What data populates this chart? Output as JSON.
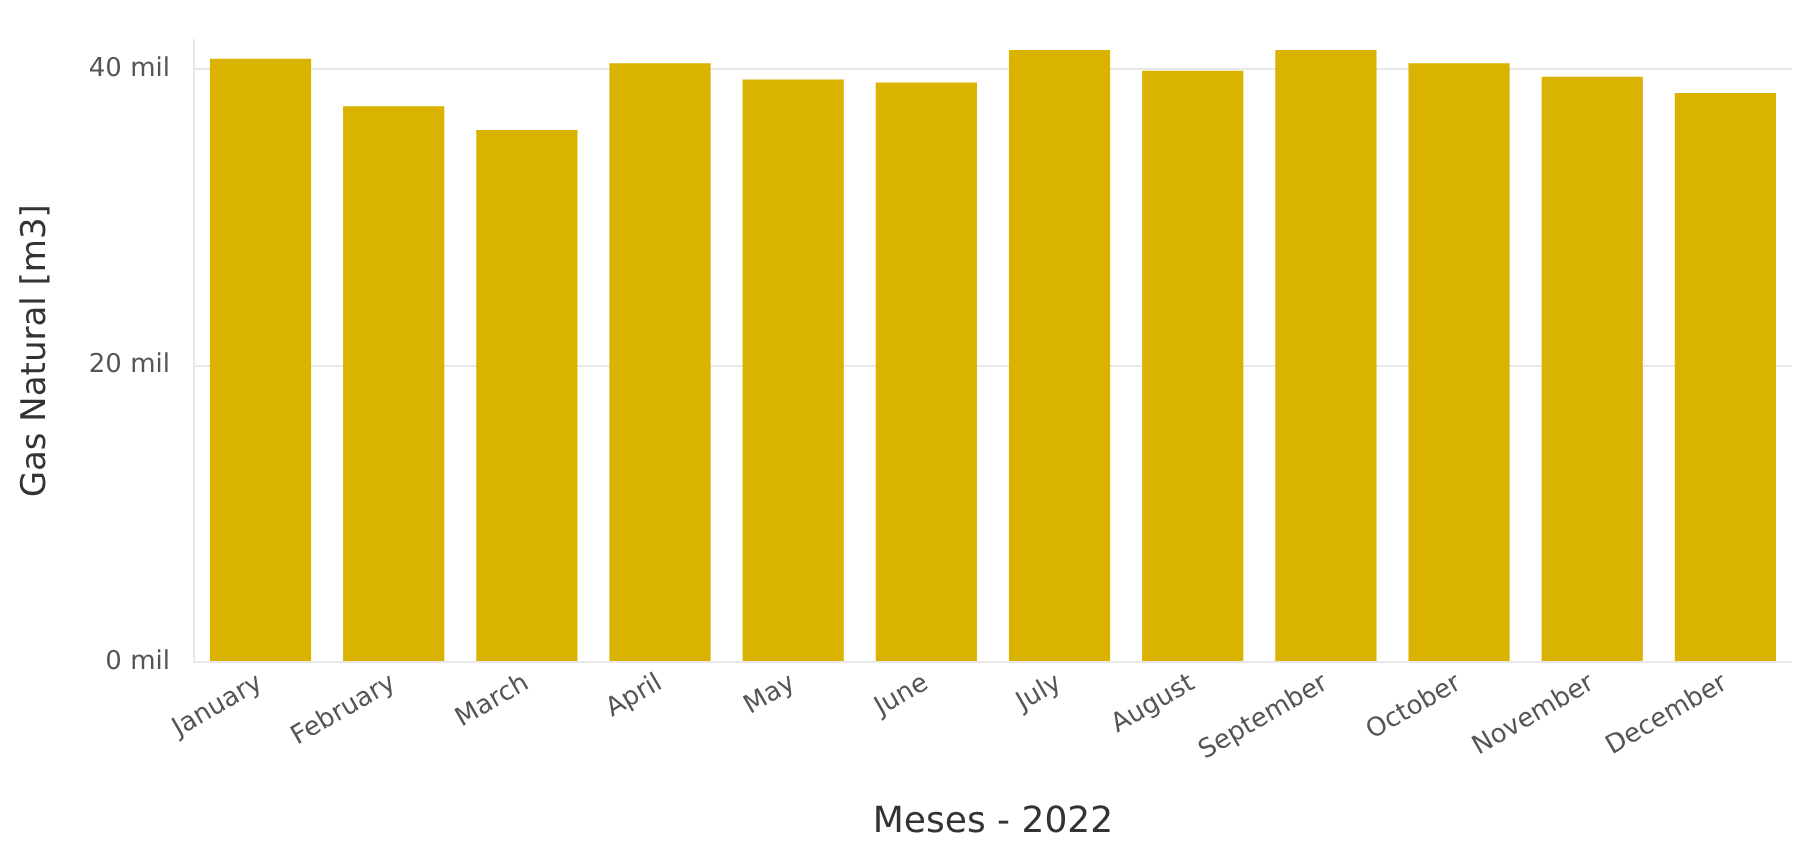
{
  "chart_data": {
    "type": "bar",
    "xlabel": "Meses - 2022",
    "ylabel": "Gas Natural [m3]",
    "categories": [
      "January",
      "February",
      "March",
      "April",
      "May",
      "June",
      "July",
      "August",
      "September",
      "October",
      "November",
      "December"
    ],
    "values": [
      40.7,
      37.5,
      35.9,
      40.4,
      39.3,
      39.1,
      41.3,
      39.9,
      41.3,
      40.4,
      39.5,
      38.4
    ],
    "color": "#d9b300",
    "ylim": [
      0,
      42
    ],
    "yticks": [
      {
        "value": 0,
        "label": "0 mil"
      },
      {
        "value": 20,
        "label": "20 mil"
      },
      {
        "value": 40,
        "label": "40 mil"
      }
    ],
    "grid": "y",
    "legend": false
  }
}
